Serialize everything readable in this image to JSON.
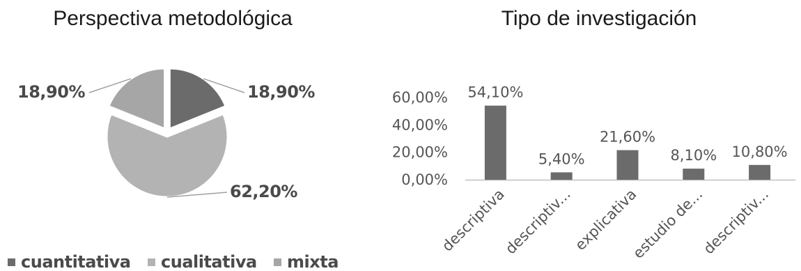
{
  "colors": {
    "cuantitativa": "#6b6b6b",
    "cualitativa": "#b3b3b3",
    "mixta": "#a6a6a6",
    "bar": "#6b6b6b",
    "leader": "#a0a0a0"
  },
  "chart_data": [
    {
      "type": "pie",
      "title": "Perspectiva metodológica",
      "slices": [
        {
          "name": "cuantitativa",
          "value": 18.9,
          "label": "18,90%"
        },
        {
          "name": "cualitativa",
          "value": 62.2,
          "label": "62,20%"
        },
        {
          "name": "mixta",
          "value": 18.9,
          "label": "18,90%"
        }
      ],
      "legend": [
        "cuantitativa",
        "cualitativa",
        "mixta"
      ],
      "legend_position": "bottom"
    },
    {
      "type": "bar",
      "title": "Tipo de investigación",
      "categories": [
        "descriptiva",
        "descriptiv...",
        "explicativa",
        "estudio de...",
        "descriptiv..."
      ],
      "values": [
        54.1,
        5.4,
        21.6,
        8.1,
        10.8
      ],
      "value_labels": [
        "54,10%",
        "5,40%",
        "21,60%",
        "8,10%",
        "10,80%"
      ],
      "yticks": [
        "0,00%",
        "20,00%",
        "40,00%",
        "60,00%"
      ],
      "ytick_values": [
        0,
        20,
        40,
        60
      ],
      "ylim": [
        0,
        60
      ],
      "grid": false
    }
  ]
}
